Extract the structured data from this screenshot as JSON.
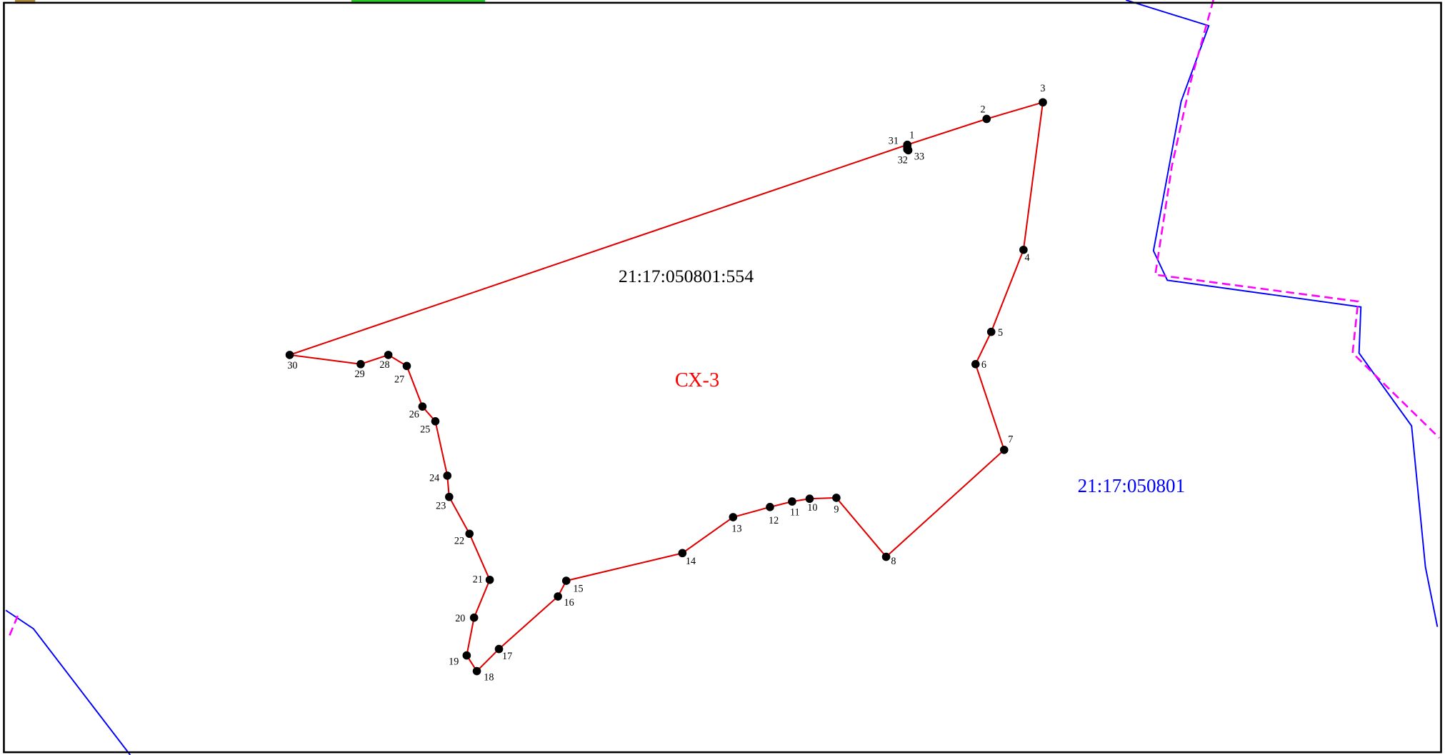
{
  "map": {
    "parcel_label": "21:17:050801:554",
    "zone_label": "СХ-3",
    "block_label": "21:17:050801",
    "points": [
      "1",
      "2",
      "3",
      "4",
      "5",
      "6",
      "7",
      "8",
      "9",
      "10",
      "11",
      "12",
      "13",
      "14",
      "15",
      "16",
      "17",
      "18",
      "19",
      "20",
      "21",
      "22",
      "23",
      "24",
      "25",
      "26",
      "27",
      "28",
      "29",
      "30",
      "31",
      "32",
      "33"
    ]
  }
}
